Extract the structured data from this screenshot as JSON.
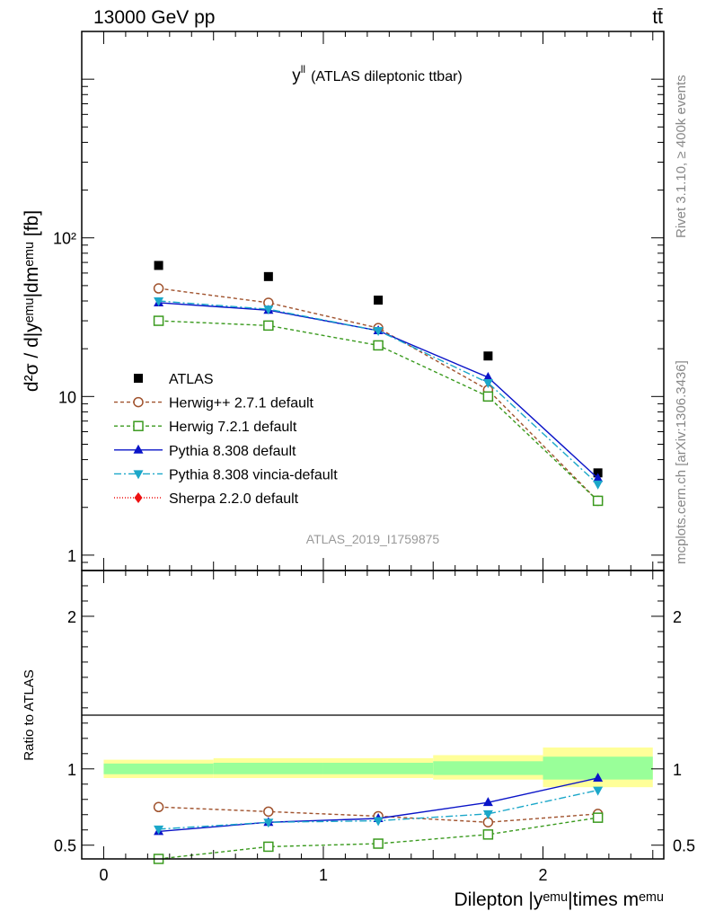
{
  "header": {
    "left": "13000 GeV pp",
    "right": "tt̄",
    "side_top": "Rivet 3.1.10, ≥ 400k events",
    "side_bottom": "mcplots.cern.ch [arXiv:1306.3436]"
  },
  "colors": {
    "atlas": "#000000",
    "herwigpp": "#a0522d",
    "herwig7": "#3a9a1e",
    "pythia": "#0a14c8",
    "vincia": "#1ba7c9",
    "sherpa": "#ee1111",
    "band_outer": "#ffff99",
    "band_inner": "#99ff99"
  },
  "chart_data": [
    {
      "type": "scatter",
      "title": "y",
      "title_sup": "ll",
      "title_rest": "(ATLAS dileptonic ttbar)",
      "analysis_label": "ATLAS_2019_I1759875",
      "ylabel": "d²σ / d|yᵉᵐᵘ|dmᵉᵐᵘ [fb]",
      "yscale": "log",
      "xlim": [
        -0.1,
        2.55
      ],
      "ylim": [
        0.8,
        2000
      ],
      "x": [
        0.25,
        0.75,
        1.25,
        1.75,
        2.25
      ],
      "y_ticks": [
        {
          "value": 1,
          "label": "1"
        },
        {
          "value": 10,
          "label": "10"
        },
        {
          "value": 100,
          "label": "10²"
        }
      ],
      "legend_placement": "lower-left",
      "series": [
        {
          "name": "ATLAS",
          "key": "atlas",
          "marker": "square",
          "values": [
            67,
            57,
            40.5,
            18,
            3.3
          ]
        },
        {
          "name": "Herwig++ 2.7.1 default",
          "key": "herwigpp",
          "marker": "circle-open",
          "dash": "4,3",
          "values": [
            48,
            39,
            27,
            11,
            2.2
          ]
        },
        {
          "name": "Herwig 7.2.1 default",
          "key": "herwig7",
          "marker": "square-open",
          "dash": "4,3",
          "values": [
            30,
            28,
            21,
            10,
            2.2
          ]
        },
        {
          "name": "Pythia 8.308 default",
          "key": "pythia",
          "marker": "triangle-up",
          "dash": "",
          "values": [
            39,
            35,
            26,
            13.2,
            3.05
          ]
        },
        {
          "name": "Pythia 8.308 vincia-default",
          "key": "vincia",
          "marker": "triangle-down",
          "dash": "8,3,2,3",
          "values": [
            40,
            35.5,
            26,
            12.2,
            2.8
          ]
        },
        {
          "name": "Sherpa 2.2.0 default",
          "key": "sherpa",
          "marker": "diamond",
          "dash": "1,2",
          "values": []
        }
      ]
    },
    {
      "type": "scatter",
      "xlabel": "Dilepton |yᵉᵐᵘ|times mᵉᵐᵘ",
      "ylabel": "Ratio to ATLAS",
      "xlim": [
        -0.1,
        2.55
      ],
      "ylim": [
        0.41,
        2.3
      ],
      "x": [
        0.25,
        0.75,
        1.25,
        1.75,
        2.25
      ],
      "x_ticks": [
        {
          "value": 0,
          "label": "0"
        },
        {
          "value": 1,
          "label": "1"
        },
        {
          "value": 2,
          "label": "2"
        }
      ],
      "y_ticks": [
        {
          "value": 0.5,
          "label": "0.5"
        },
        {
          "value": 1,
          "label": "1"
        },
        {
          "value": 2,
          "label": "2"
        }
      ],
      "bands": [
        {
          "x0": 0.0,
          "x1": 0.5,
          "outer": [
            0.94,
            1.06
          ],
          "inner": [
            0.965,
            1.035
          ]
        },
        {
          "x0": 0.5,
          "x1": 1.0,
          "outer": [
            0.94,
            1.07
          ],
          "inner": [
            0.965,
            1.04
          ]
        },
        {
          "x0": 1.0,
          "x1": 1.5,
          "outer": [
            0.94,
            1.07
          ],
          "inner": [
            0.965,
            1.04
          ]
        },
        {
          "x0": 1.5,
          "x1": 2.0,
          "outer": [
            0.93,
            1.09
          ],
          "inner": [
            0.96,
            1.05
          ]
        },
        {
          "x0": 2.0,
          "x1": 2.5,
          "outer": [
            0.88,
            1.14
          ],
          "inner": [
            0.93,
            1.08
          ]
        }
      ],
      "series": [
        {
          "key": "herwigpp",
          "marker": "circle-open",
          "dash": "4,3",
          "values": [
            0.75,
            0.72,
            0.69,
            0.65,
            0.705
          ]
        },
        {
          "key": "herwig7",
          "marker": "square-open",
          "dash": "4,3",
          "values": [
            0.41,
            0.49,
            0.51,
            0.57,
            0.68
          ]
        },
        {
          "key": "pythia",
          "marker": "triangle-up",
          "dash": "",
          "values": [
            0.59,
            0.65,
            0.675,
            0.78,
            0.94
          ]
        },
        {
          "key": "vincia",
          "marker": "triangle-down",
          "dash": "8,3,2,3",
          "values": [
            0.605,
            0.65,
            0.66,
            0.705,
            0.86
          ]
        }
      ]
    }
  ]
}
